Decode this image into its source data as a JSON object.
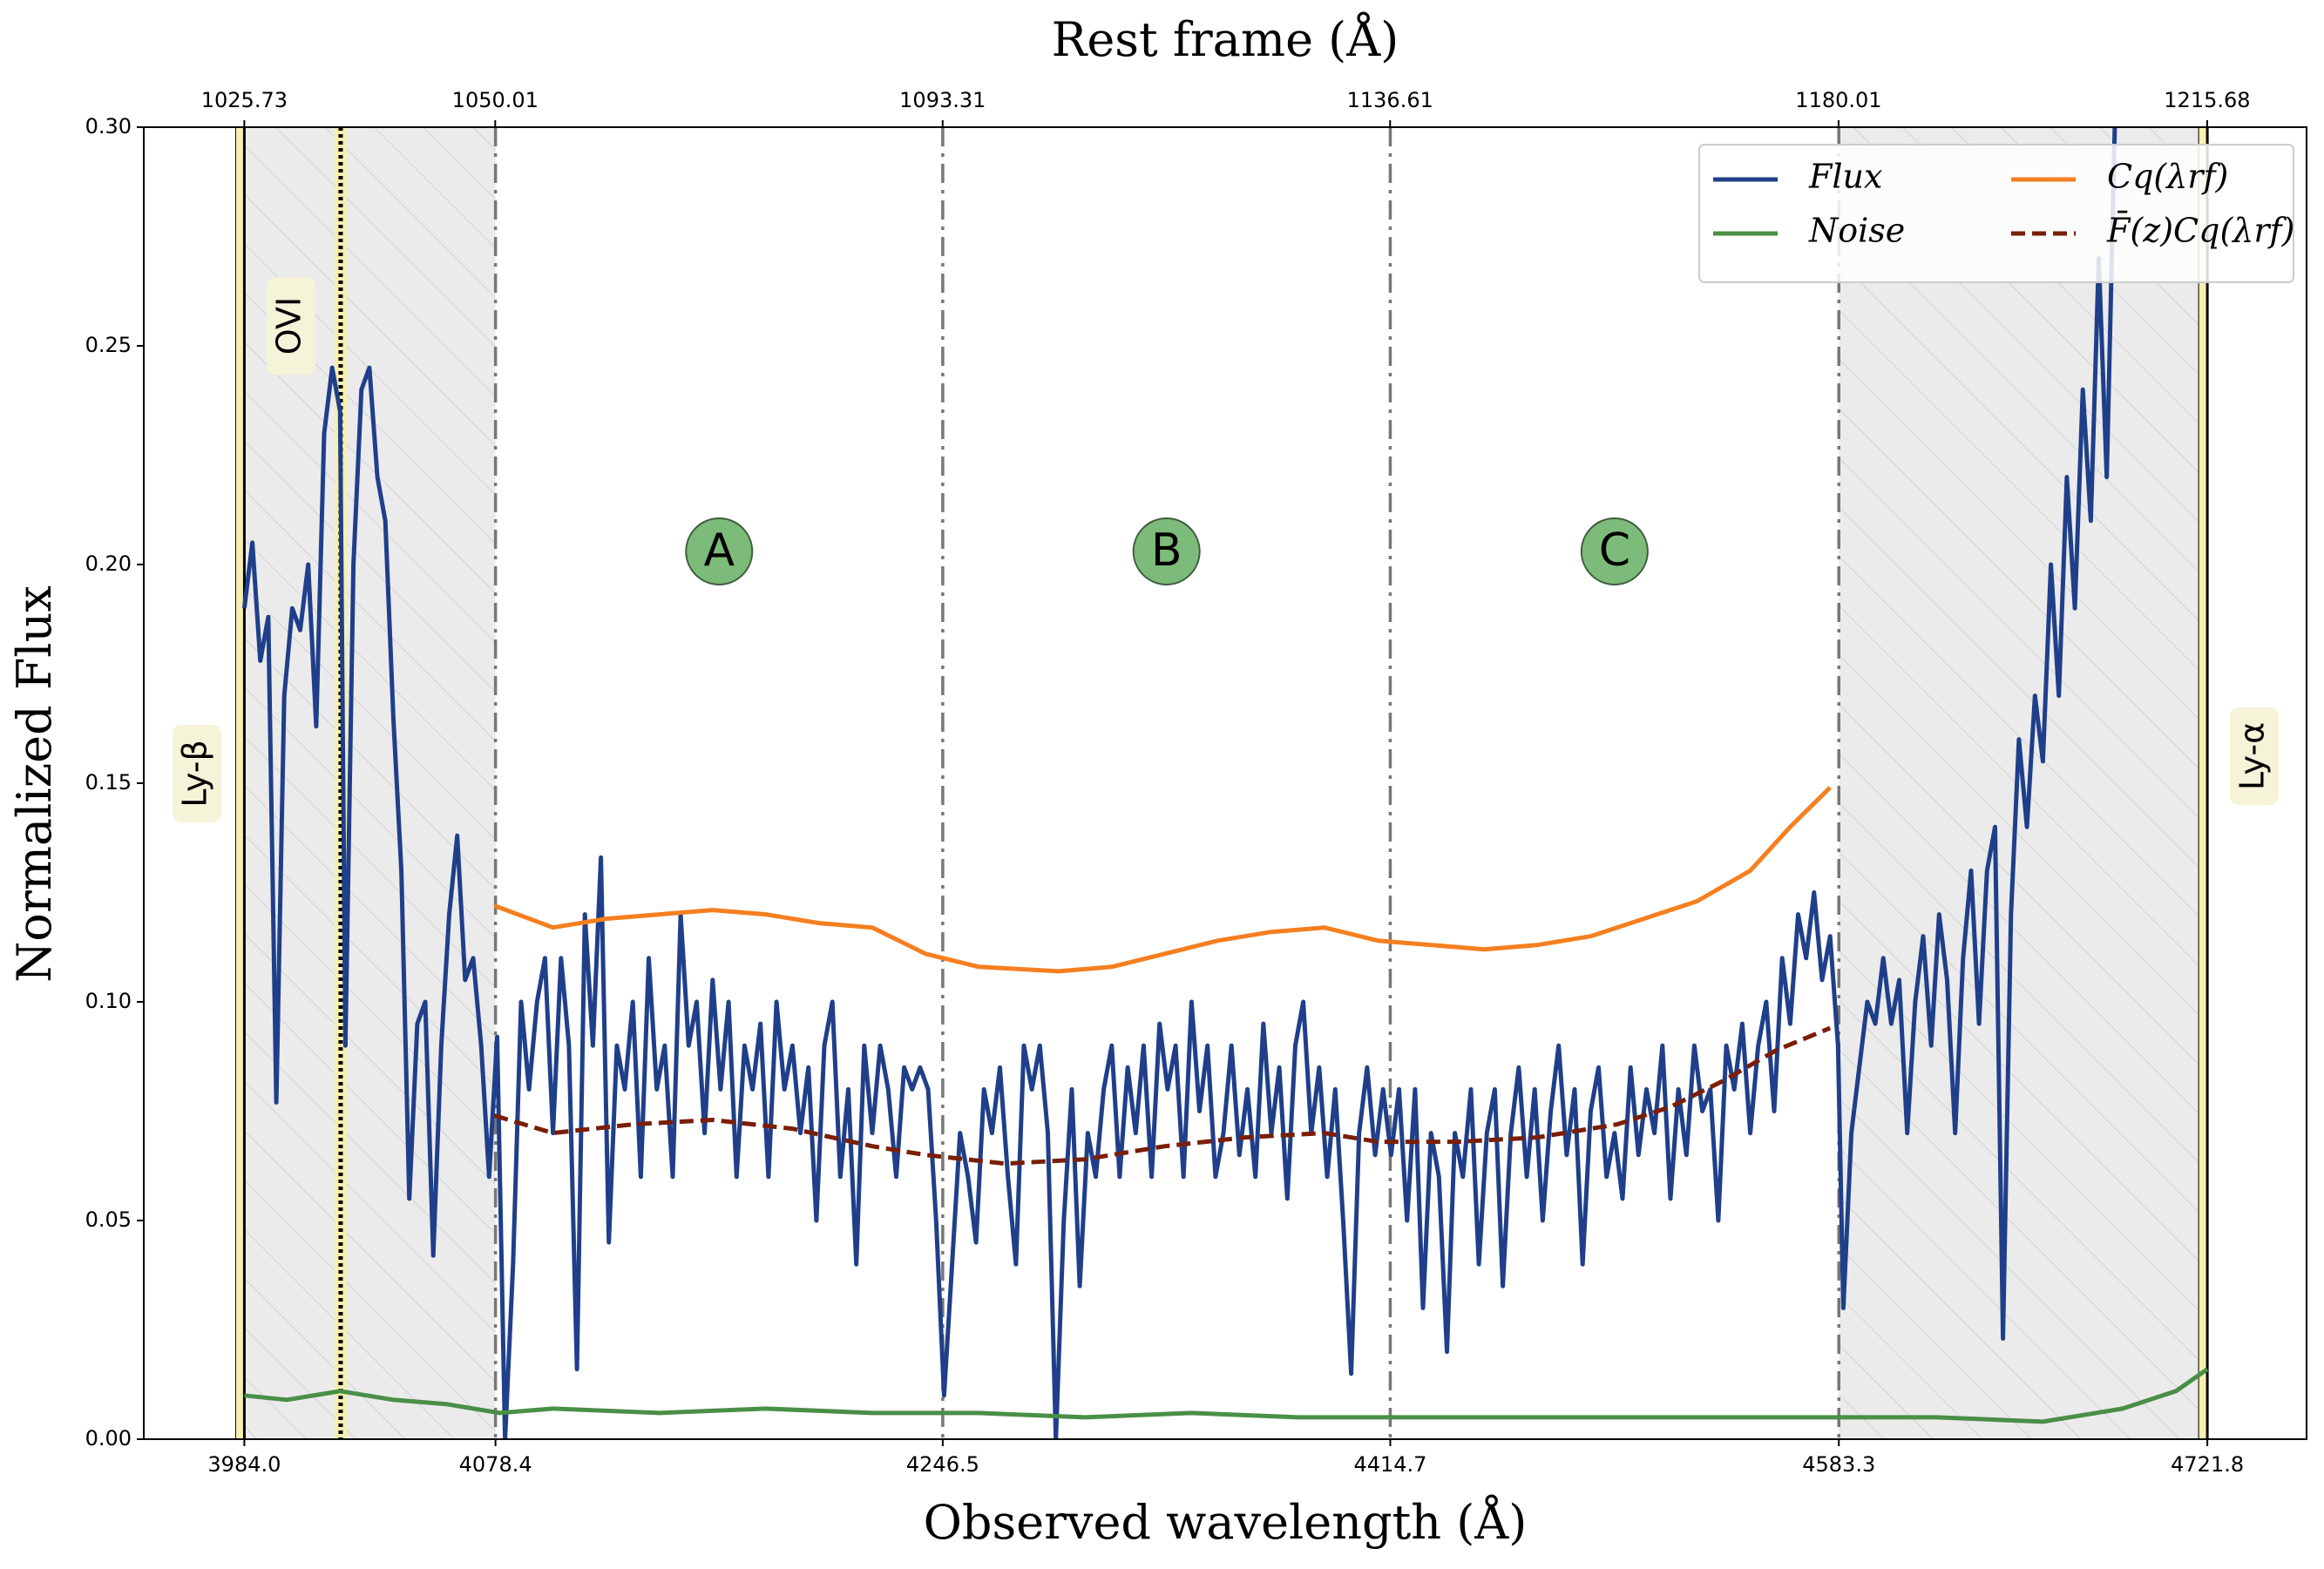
{
  "chart_data": {
    "type": "line",
    "top_axis_label": "Rest frame (Å)",
    "xlabel": "Observed wavelength (Å)",
    "ylabel": "Normalized Flux",
    "xlim": [
      3946.2,
      4759.1
    ],
    "xticks": [
      {
        "value": 3984,
        "label": "3984.0"
      },
      4078.4,
      4246.5,
      4414.7,
      4583.3,
      4721.8
    ],
    "x2lim": [
      1016.0,
      1225.3
    ],
    "x2ticks": [
      1025.73,
      1050.01,
      1093.31,
      1136.61,
      1180.01,
      1215.68
    ],
    "ylim": [
      0,
      0.3
    ],
    "yticks": [
      {
        "value": 0,
        "label": "0.00"
      },
      {
        "value": 0.05,
        "label": "0.05"
      },
      {
        "value": 0.1,
        "label": "0.10"
      },
      {
        "value": 0.15,
        "label": "0.15"
      },
      {
        "value": 0.2,
        "label": "0.20"
      },
      {
        "value": 0.25,
        "label": "0.25"
      },
      {
        "value": 0.3,
        "label": "0.30"
      }
    ],
    "line_labels": [
      "Ly-β",
      "OVI",
      "Ly-α"
    ],
    "ovi_x": 4020.2,
    "region_labels": [
      "A",
      "B",
      "C"
    ],
    "region_y": 0.203,
    "series": [
      {
        "name": "Flux",
        "color": "#1f3f8a",
        "dash": "solid",
        "x": [
          3984,
          3987,
          3990,
          3993,
          3996,
          3999,
          4002,
          4005,
          4008,
          4011,
          4014,
          4017,
          4020,
          4022,
          4025,
          4028,
          4031,
          4034,
          4037,
          4040,
          4043,
          4046,
          4049,
          4052,
          4055,
          4058,
          4061,
          4064,
          4067,
          4070,
          4073,
          4076,
          4079,
          4082,
          4085,
          4088,
          4091,
          4094,
          4097,
          4100,
          4103,
          4106,
          4109,
          4112,
          4115,
          4118,
          4121,
          4124,
          4127,
          4130,
          4133,
          4136,
          4139,
          4142,
          4145,
          4148,
          4151,
          4154,
          4157,
          4160,
          4163,
          4166,
          4169,
          4172,
          4175,
          4178,
          4181,
          4184,
          4187,
          4190,
          4193,
          4196,
          4199,
          4202,
          4205,
          4208,
          4211,
          4214,
          4217,
          4220,
          4223,
          4226,
          4229,
          4232,
          4235,
          4238,
          4241,
          4244,
          4247,
          4250,
          4253,
          4256,
          4259,
          4262,
          4265,
          4268,
          4271,
          4274,
          4277,
          4280,
          4283,
          4286,
          4289,
          4292,
          4295,
          4298,
          4301,
          4304,
          4307,
          4310,
          4313,
          4316,
          4319,
          4322,
          4325,
          4328,
          4331,
          4334,
          4337,
          4340,
          4343,
          4346,
          4349,
          4352,
          4355,
          4358,
          4361,
          4364,
          4367,
          4370,
          4373,
          4376,
          4379,
          4382,
          4385,
          4388,
          4391,
          4394,
          4397,
          4400,
          4403,
          4406,
          4409,
          4412,
          4415,
          4418,
          4421,
          4424,
          4427,
          4430,
          4433,
          4436,
          4439,
          4442,
          4445,
          4448,
          4451,
          4454,
          4457,
          4460,
          4463,
          4466,
          4469,
          4472,
          4475,
          4478,
          4481,
          4484,
          4487,
          4490,
          4493,
          4496,
          4499,
          4502,
          4505,
          4508,
          4511,
          4514,
          4517,
          4520,
          4523,
          4526,
          4529,
          4532,
          4535,
          4538,
          4541,
          4544,
          4547,
          4550,
          4553,
          4556,
          4559,
          4562,
          4565,
          4568,
          4571,
          4574,
          4577,
          4580,
          4583,
          4585,
          4588,
          4591,
          4594,
          4597,
          4600,
          4603,
          4606,
          4609,
          4612,
          4615,
          4618,
          4621,
          4624,
          4627,
          4630,
          4633,
          4636,
          4639,
          4642,
          4645,
          4648,
          4651,
          4654,
          4657,
          4660,
          4663,
          4666,
          4669,
          4672,
          4675,
          4678,
          4681,
          4684,
          4687,
          4690
        ],
        "values": [
          0.19,
          0.205,
          0.178,
          0.188,
          0.077,
          0.17,
          0.19,
          0.185,
          0.2,
          0.163,
          0.23,
          0.245,
          0.235,
          0.09,
          0.2,
          0.24,
          0.245,
          0.22,
          0.21,
          0.165,
          0.13,
          0.055,
          0.095,
          0.1,
          0.042,
          0.09,
          0.12,
          0.138,
          0.105,
          0.11,
          0.09,
          0.06,
          0.092,
          0.0,
          0.04,
          0.1,
          0.08,
          0.1,
          0.11,
          0.07,
          0.11,
          0.09,
          0.016,
          0.12,
          0.09,
          0.133,
          0.045,
          0.09,
          0.08,
          0.1,
          0.06,
          0.11,
          0.08,
          0.09,
          0.06,
          0.12,
          0.09,
          0.1,
          0.07,
          0.105,
          0.08,
          0.1,
          0.06,
          0.09,
          0.08,
          0.095,
          0.06,
          0.1,
          0.08,
          0.09,
          0.07,
          0.085,
          0.05,
          0.09,
          0.1,
          0.06,
          0.08,
          0.04,
          0.09,
          0.07,
          0.09,
          0.08,
          0.06,
          0.085,
          0.08,
          0.085,
          0.08,
          0.05,
          0.01,
          0.04,
          0.07,
          0.06,
          0.045,
          0.08,
          0.07,
          0.085,
          0.06,
          0.04,
          0.09,
          0.08,
          0.09,
          0.07,
          0.0,
          0.05,
          0.08,
          0.035,
          0.07,
          0.06,
          0.08,
          0.09,
          0.06,
          0.085,
          0.07,
          0.09,
          0.06,
          0.095,
          0.08,
          0.09,
          0.06,
          0.1,
          0.075,
          0.09,
          0.06,
          0.07,
          0.09,
          0.065,
          0.08,
          0.06,
          0.095,
          0.07,
          0.085,
          0.055,
          0.09,
          0.1,
          0.07,
          0.085,
          0.06,
          0.08,
          0.05,
          0.015,
          0.07,
          0.085,
          0.065,
          0.08,
          0.065,
          0.08,
          0.05,
          0.08,
          0.03,
          0.07,
          0.06,
          0.02,
          0.07,
          0.06,
          0.08,
          0.04,
          0.07,
          0.08,
          0.035,
          0.07,
          0.085,
          0.06,
          0.08,
          0.05,
          0.075,
          0.09,
          0.065,
          0.08,
          0.04,
          0.075,
          0.085,
          0.06,
          0.07,
          0.055,
          0.085,
          0.065,
          0.08,
          0.07,
          0.09,
          0.055,
          0.08,
          0.065,
          0.09,
          0.075,
          0.08,
          0.05,
          0.09,
          0.08,
          0.095,
          0.07,
          0.09,
          0.1,
          0.075,
          0.11,
          0.095,
          0.12,
          0.11,
          0.125,
          0.105,
          0.115,
          0.09,
          0.03,
          0.07,
          0.085,
          0.1,
          0.095,
          0.11,
          0.095,
          0.105,
          0.07,
          0.1,
          0.115,
          0.09,
          0.12,
          0.105,
          0.07,
          0.11,
          0.13,
          0.095,
          0.13,
          0.14,
          0.023,
          0.12,
          0.16,
          0.14,
          0.17,
          0.155,
          0.2,
          0.17,
          0.22,
          0.19,
          0.24,
          0.21,
          0.27,
          0.22,
          0.3,
          0.31
        ]
      },
      {
        "name": "Noise",
        "color": "#4a8f46",
        "dash": "solid",
        "x": [
          3984,
          4000,
          4020,
          4040,
          4060,
          4080,
          4100,
          4140,
          4180,
          4220,
          4260,
          4300,
          4340,
          4380,
          4420,
          4460,
          4500,
          4540,
          4580,
          4620,
          4660,
          4690,
          4710,
          4721.8
        ],
        "values": [
          0.01,
          0.009,
          0.011,
          0.009,
          0.008,
          0.006,
          0.007,
          0.006,
          0.007,
          0.006,
          0.006,
          0.005,
          0.006,
          0.005,
          0.005,
          0.005,
          0.005,
          0.005,
          0.005,
          0.005,
          0.004,
          0.007,
          0.011,
          0.016
        ]
      },
      {
        "name": "Cq(λrf)",
        "color": "#f57f20",
        "dash": "solid",
        "x": [
          4078,
          4100,
          4120,
          4140,
          4160,
          4180,
          4200,
          4220,
          4240,
          4260,
          4290,
          4310,
          4330,
          4350,
          4370,
          4390,
          4410,
          4430,
          4450,
          4470,
          4490,
          4510,
          4530,
          4550,
          4565,
          4580
        ],
        "values": [
          0.122,
          0.117,
          0.119,
          0.12,
          0.121,
          0.12,
          0.118,
          0.117,
          0.111,
          0.108,
          0.107,
          0.108,
          0.111,
          0.114,
          0.116,
          0.117,
          0.114,
          0.113,
          0.112,
          0.113,
          0.115,
          0.119,
          0.123,
          0.13,
          0.14,
          0.149
        ]
      },
      {
        "name": "F̄(z)Cq(λrf)",
        "color": "#7a1e05",
        "dash": "dashed",
        "x": [
          4078,
          4100,
          4130,
          4160,
          4190,
          4220,
          4240,
          4270,
          4300,
          4330,
          4360,
          4390,
          4410,
          4440,
          4470,
          4500,
          4520,
          4540,
          4560,
          4580
        ],
        "values": [
          0.074,
          0.07,
          0.072,
          0.073,
          0.071,
          0.067,
          0.065,
          0.063,
          0.064,
          0.067,
          0.069,
          0.07,
          0.068,
          0.068,
          0.069,
          0.072,
          0.076,
          0.082,
          0.089,
          0.094
        ]
      }
    ]
  }
}
